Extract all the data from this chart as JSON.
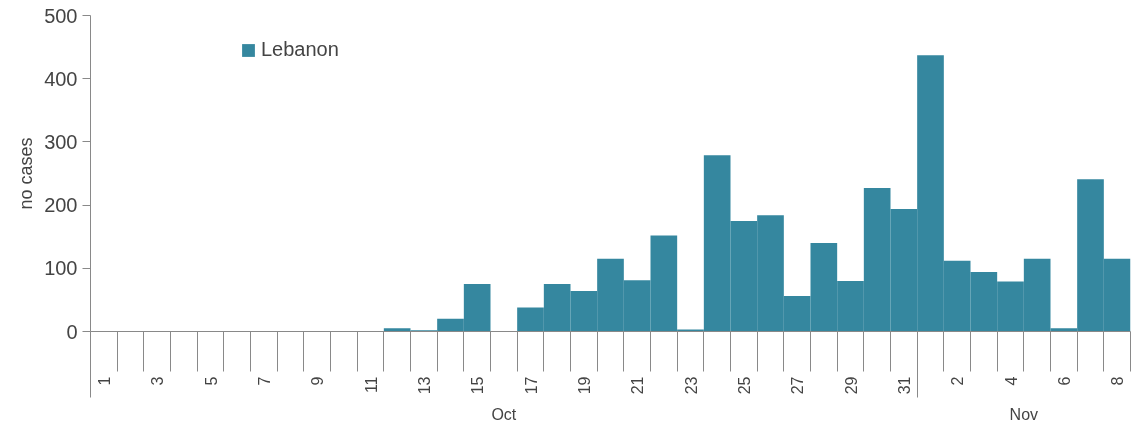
{
  "chart_data": {
    "type": "bar",
    "ylabel": "no cases",
    "categories": [
      "1",
      null,
      "3",
      null,
      "5",
      null,
      "7",
      null,
      "9",
      null,
      "11",
      null,
      "13",
      null,
      "15",
      null,
      "17",
      null,
      "19",
      null,
      "21",
      null,
      "23",
      null,
      "25",
      null,
      "27",
      null,
      "29",
      null,
      "31",
      null,
      "2",
      null,
      "4",
      null,
      "6",
      null,
      "8"
    ],
    "series": [
      {
        "name": "Lebanon",
        "color": "#35879f",
        "values": [
          0,
          0,
          0,
          0,
          0,
          0,
          0,
          0,
          0,
          0,
          0,
          5,
          2,
          20,
          75,
          0,
          38,
          75,
          64,
          115,
          81,
          152,
          3,
          279,
          175,
          184,
          56,
          140,
          80,
          227,
          194,
          437,
          112,
          94,
          79,
          115,
          5,
          241,
          115
        ]
      }
    ],
    "annotations": [
      "Oct",
      "Nov"
    ],
    "ylim": [
      0,
      500
    ],
    "yticks": [
      0,
      100,
      200,
      300,
      400,
      500
    ],
    "grid": false,
    "legend": "top left"
  }
}
